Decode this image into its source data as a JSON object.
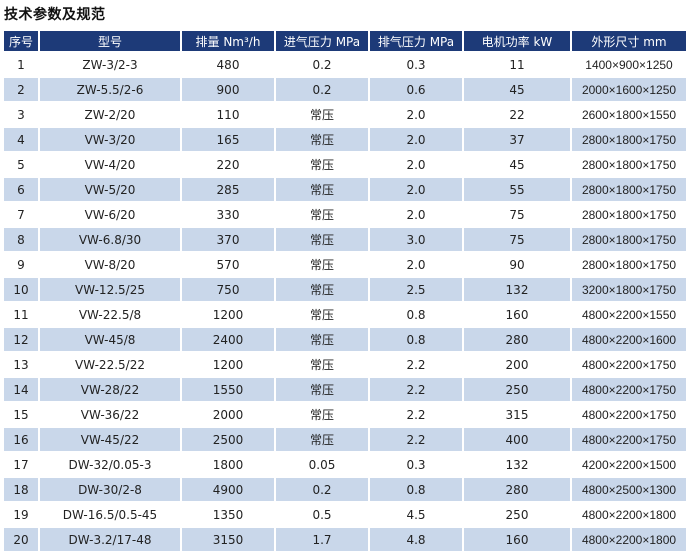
{
  "title": "技术参数及规范",
  "table": {
    "headers": [
      "序号",
      "型号",
      "排量 Nm³/h",
      "进气压力 MPa",
      "排气压力 MPa",
      "电机功率 kW",
      "外形尺寸 mm"
    ],
    "rows": [
      [
        "1",
        "ZW-3/2-3",
        "480",
        "0.2",
        "0.3",
        "11",
        "1400×900×1250"
      ],
      [
        "2",
        "ZW-5.5/2-6",
        "900",
        "0.2",
        "0.6",
        "45",
        "2000×1600×1250"
      ],
      [
        "3",
        "ZW-2/20",
        "110",
        "常压",
        "2.0",
        "22",
        "2600×1800×1550"
      ],
      [
        "4",
        "VW-3/20",
        "165",
        "常压",
        "2.0",
        "37",
        "2800×1800×1750"
      ],
      [
        "5",
        "VW-4/20",
        "220",
        "常压",
        "2.0",
        "45",
        "2800×1800×1750"
      ],
      [
        "6",
        "VW-5/20",
        "285",
        "常压",
        "2.0",
        "55",
        "2800×1800×1750"
      ],
      [
        "7",
        "VW-6/20",
        "330",
        "常压",
        "2.0",
        "75",
        "2800×1800×1750"
      ],
      [
        "8",
        "VW-6.8/30",
        "370",
        "常压",
        "3.0",
        "75",
        "2800×1800×1750"
      ],
      [
        "9",
        "VW-8/20",
        "570",
        "常压",
        "2.0",
        "90",
        "2800×1800×1750"
      ],
      [
        "10",
        "VW-12.5/25",
        "750",
        "常压",
        "2.5",
        "132",
        "3200×1800×1750"
      ],
      [
        "11",
        "VW-22.5/8",
        "1200",
        "常压",
        "0.8",
        "160",
        "4800×2200×1550"
      ],
      [
        "12",
        "VW-45/8",
        "2400",
        "常压",
        "0.8",
        "280",
        "4800×2200×1600"
      ],
      [
        "13",
        "VW-22.5/22",
        "1200",
        "常压",
        "2.2",
        "200",
        "4800×2200×1750"
      ],
      [
        "14",
        "VW-28/22",
        "1550",
        "常压",
        "2.2",
        "250",
        "4800×2200×1750"
      ],
      [
        "15",
        "VW-36/22",
        "2000",
        "常压",
        "2.2",
        "315",
        "4800×2200×1750"
      ],
      [
        "16",
        "VW-45/22",
        "2500",
        "常压",
        "2.2",
        "400",
        "4800×2200×1750"
      ],
      [
        "17",
        "DW-32/0.05-3",
        "1800",
        "0.05",
        "0.3",
        "132",
        "4200×2200×1500"
      ],
      [
        "18",
        "DW-30/2-8",
        "4900",
        "0.2",
        "0.8",
        "280",
        "4800×2500×1300"
      ],
      [
        "19",
        "DW-16.5/0.5-45",
        "1350",
        "0.5",
        "4.5",
        "250",
        "4800×2200×1800"
      ],
      [
        "20",
        "DW-3.2/17-48",
        "3150",
        "1.7",
        "4.8",
        "160",
        "4800×2200×1800"
      ]
    ]
  },
  "colors": {
    "header_bg": "#1d3a78",
    "header_text": "#ffffff",
    "stripe_row_bg": "#c9d7ea",
    "plain_row_bg": "#ffffff"
  }
}
